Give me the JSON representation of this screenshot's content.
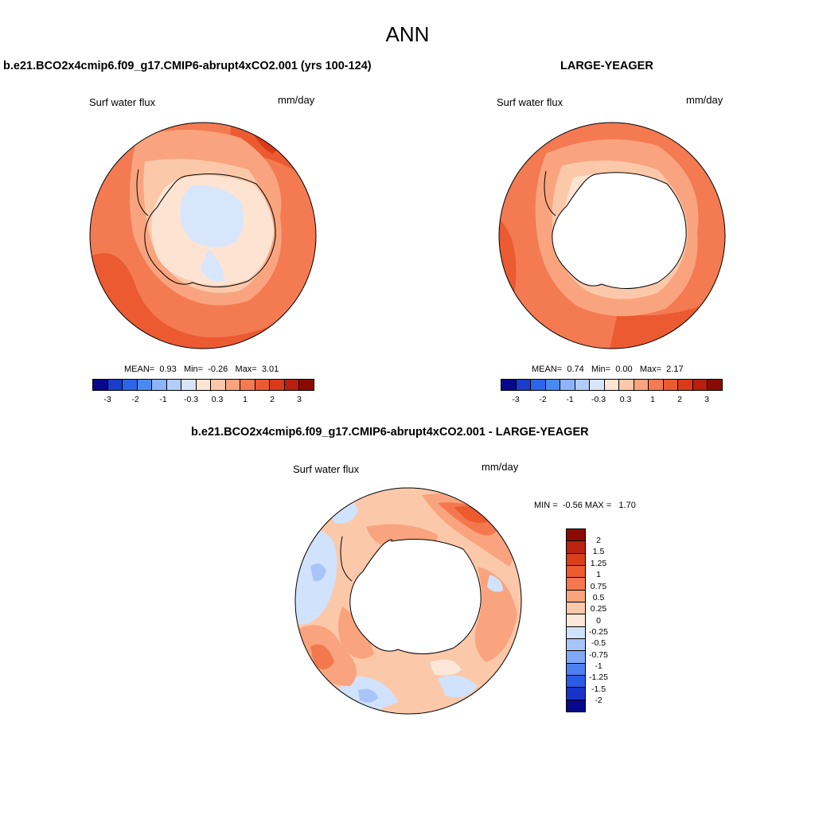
{
  "title": "ANN",
  "palette": {
    "full": [
      "#08088c",
      "#1c3ccc",
      "#2c64e8",
      "#4a8af0",
      "#8cb4f8",
      "#b4ccfa",
      "#d8e6fc",
      "#fde4d2",
      "#fcc8aa",
      "#f9a47e",
      "#f47a52",
      "#ec5a32",
      "#d83a1a",
      "#b81f0c",
      "#8a0a04"
    ],
    "diff": [
      "#08088c",
      "#1a34c8",
      "#2c5ce6",
      "#4c80f0",
      "#80a8f6",
      "#a8c4f8",
      "#d0e2fc",
      "#fde8d8",
      "#fcc8aa",
      "#f9a47e",
      "#f4784e",
      "#ec5a2e",
      "#d8401a",
      "#b82410",
      "#8a0a04"
    ]
  },
  "panels": [
    {
      "header": "b.e21.BCO2x4cmip6.f09_g17.CMIP6-abrupt4xCO2.001 (yrs 100-124)",
      "field": "Surf water flux",
      "units": "mm/day",
      "stats": {
        "mean_label": "MEAN=",
        "mean": "0.93",
        "min_label": "Min=",
        "min": "-0.26",
        "max_label": "Max=",
        "max": "3.01"
      },
      "colorbar_ticks": [
        "-3",
        "-2",
        "-1",
        "-0.3",
        "0.3",
        "1",
        "2",
        "3"
      ]
    },
    {
      "header": "LARGE-YEAGER",
      "field": "Surf water flux",
      "units": "mm/day",
      "stats": {
        "mean_label": "MEAN=",
        "mean": "0.74",
        "min_label": "Min=",
        "min": "0.00",
        "max_label": "Max=",
        "max": "2.17"
      },
      "colorbar_ticks": [
        "-3",
        "-2",
        "-1",
        "-0.3",
        "0.3",
        "1",
        "2",
        "3"
      ]
    },
    {
      "header": "b.e21.BCO2x4cmip6.f09_g17.CMIP6-abrupt4xCO2.001 - LARGE-YEAGER",
      "field": "Surf water flux",
      "units": "mm/day",
      "stats": {
        "min_label": "MIN =",
        "min": "-0.56",
        "max_label": "MAX =",
        "max": "1.70"
      },
      "colorbar_ticks": [
        "2",
        "1.5",
        "1.25",
        "1",
        "0.75",
        "0.5",
        "0.25",
        "0",
        "-0.25",
        "-0.5",
        "-0.75",
        "-1",
        "-1.25",
        "-1.5",
        "-2"
      ]
    }
  ]
}
